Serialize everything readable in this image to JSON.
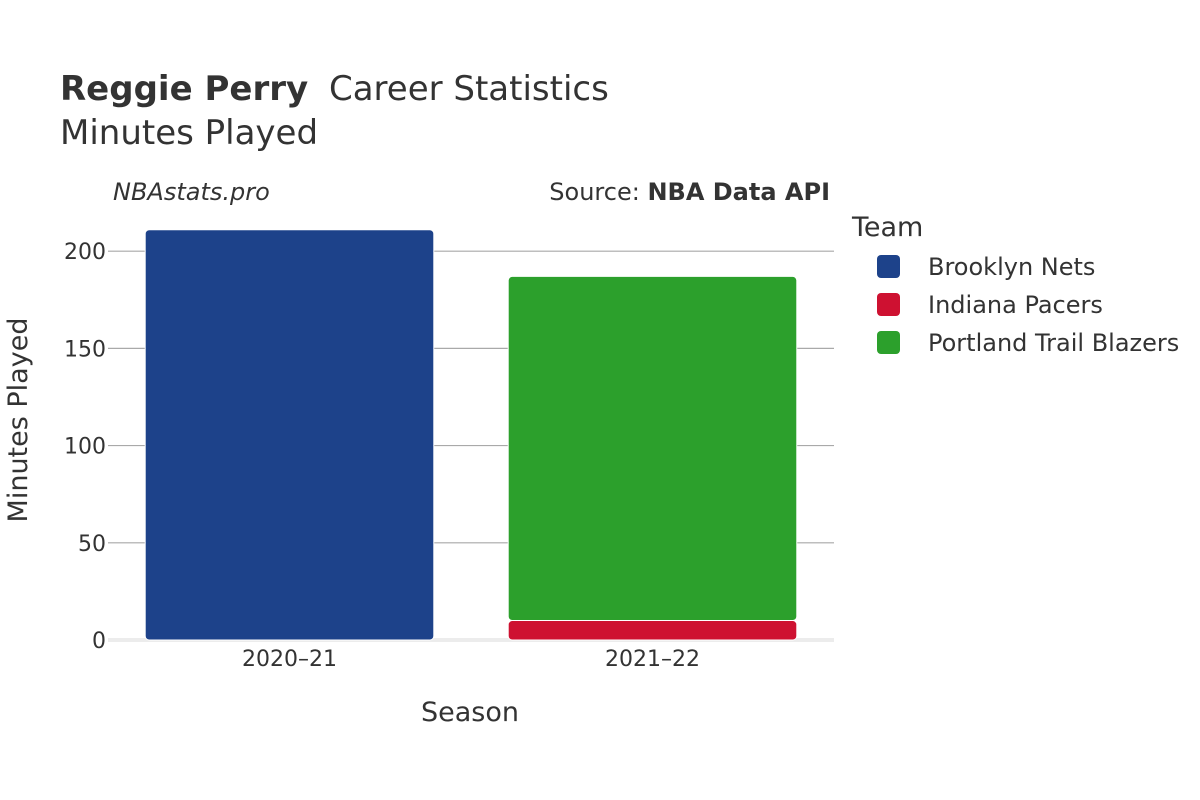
{
  "title": {
    "player": "Reggie Perry",
    "rest": "Career Statistics",
    "subtitle": "Minutes Played"
  },
  "watermark": "NBAstats.pro",
  "source": {
    "prefix": "Source: ",
    "name": "NBA Data API"
  },
  "legend": {
    "title": "Team",
    "items": [
      {
        "label": "Brooklyn Nets",
        "color": "#1d428a"
      },
      {
        "label": "Indiana Pacers",
        "color": "#ce1131"
      },
      {
        "label": "Portland Trail Blazers",
        "color": "#2ca02c"
      }
    ]
  },
  "chart_data": {
    "type": "bar",
    "stacked": true,
    "categories": [
      "2020–21",
      "2021–22"
    ],
    "series": [
      {
        "name": "Brooklyn Nets",
        "color": "#1d428a",
        "values": [
          211,
          0
        ]
      },
      {
        "name": "Indiana Pacers",
        "color": "#ce1131",
        "values": [
          0,
          10
        ]
      },
      {
        "name": "Portland Trail Blazers",
        "color": "#2ca02c",
        "values": [
          0,
          177
        ]
      }
    ],
    "xlabel": "Season",
    "ylabel": "Minutes Played",
    "ylim": [
      0,
      215
    ],
    "yticks": [
      0,
      50,
      100,
      150,
      200
    ],
    "grid": true,
    "legend_position": "right"
  }
}
